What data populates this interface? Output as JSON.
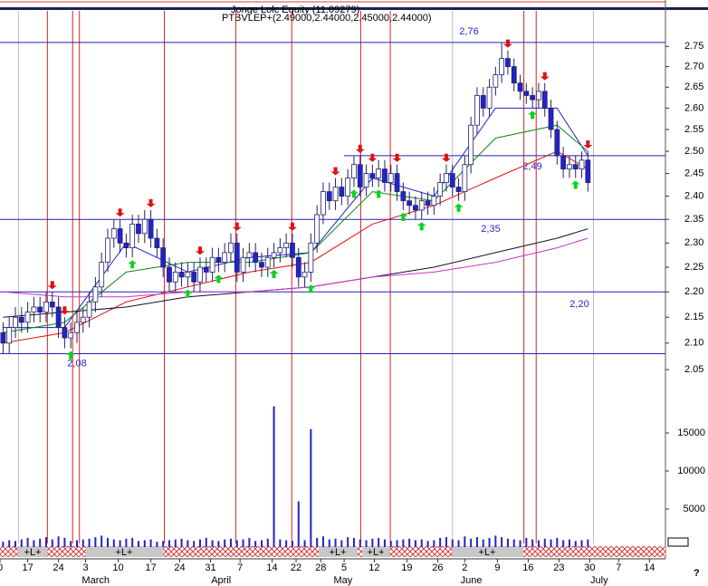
{
  "chart_data": {
    "type": "candlestick",
    "title": "Jonge Lolc Equity (11.09279)",
    "subtitle": "PTBVLEP+(2.49000,2.44000,2.45000,2.44000)",
    "log_scale": true,
    "xlim": [
      -0.5,
      107.6
    ],
    "ylim": [
      2.03,
      2.845
    ],
    "yticks": [
      {
        "value": 2.05,
        "label": "2.05"
      },
      {
        "value": 2.1,
        "label": "2.10"
      },
      2.15,
      {
        "value": 2.2,
        "label": "2.20"
      },
      2.25,
      {
        "value": 2.3,
        "label": "2.30"
      },
      2.35,
      {
        "value": 2.4,
        "label": "2.40"
      },
      2.45,
      {
        "value": 2.5,
        "label": "2.50"
      },
      2.55,
      {
        "value": 2.6,
        "label": "2.60"
      },
      2.65,
      {
        "value": 2.7,
        "label": "2.70"
      },
      2.75
    ],
    "xticks": [
      {
        "value": -0.5,
        "label": "0"
      },
      {
        "value": 4,
        "label": "17"
      },
      {
        "value": 9,
        "label": "24"
      },
      {
        "value": 13.4,
        "label": "3"
      },
      {
        "value": 18.7,
        "label": "10"
      },
      {
        "value": 24,
        "label": "17"
      },
      {
        "value": 28.7,
        "label": "24"
      },
      {
        "value": 33.7,
        "label": "31"
      },
      {
        "value": 38.5,
        "label": "7"
      },
      {
        "value": 43.7,
        "label": "14"
      },
      {
        "value": 47.6,
        "label": "22"
      },
      {
        "value": 51.6,
        "label": "28"
      },
      {
        "value": 55.4,
        "label": "5"
      },
      {
        "value": 60.3,
        "label": "12"
      },
      {
        "value": 65.6,
        "label": "19"
      },
      {
        "value": 70.6,
        "label": "26"
      },
      {
        "value": 75,
        "label": "2"
      },
      {
        "value": 80.3,
        "label": "9"
      },
      {
        "value": 85.3,
        "label": "16"
      },
      {
        "value": 90.3,
        "label": "23"
      },
      {
        "value": 95.3,
        "label": "30"
      },
      {
        "value": 100,
        "label": "7"
      },
      {
        "value": 105,
        "label": "14"
      }
    ],
    "months": [
      {
        "value": 12.8,
        "label": "March"
      },
      {
        "value": 33.8,
        "label": "April"
      },
      {
        "value": 53.7,
        "label": "May"
      },
      {
        "value": 74.3,
        "label": "June"
      },
      {
        "value": 95.4,
        "label": "July"
      }
    ],
    "up_color": "#ffffff",
    "down_color": "#2323c8",
    "open": [
      2.12,
      2.1,
      2.13,
      2.15,
      2.14,
      2.16,
      2.17,
      2.16,
      2.18,
      2.17,
      2.13,
      2.11,
      2.12,
      2.14,
      2.15,
      2.18,
      2.21,
      2.26,
      2.31,
      2.33,
      2.3,
      2.29,
      2.34,
      2.32,
      2.35,
      2.31,
      2.29,
      2.25,
      2.22,
      2.24,
      2.23,
      2.24,
      2.22,
      2.25,
      2.24,
      2.27,
      2.26,
      2.28,
      2.3,
      2.24,
      2.27,
      2.28,
      2.26,
      2.25,
      2.27,
      2.28,
      2.29,
      2.3,
      2.27,
      2.23,
      2.24,
      2.3,
      2.36,
      2.41,
      2.39,
      2.42,
      2.4,
      2.44,
      2.47,
      2.42,
      2.45,
      2.44,
      2.46,
      2.43,
      2.45,
      2.41,
      2.39,
      2.38,
      2.37,
      2.39,
      2.38,
      2.4,
      2.43,
      2.45,
      2.42,
      2.41,
      2.47,
      2.56,
      2.63,
      2.6,
      2.65,
      2.68,
      2.72,
      2.7,
      2.66,
      2.64,
      2.63,
      2.62,
      2.64,
      2.6,
      2.55,
      2.49,
      2.46,
      2.47,
      2.46,
      2.48
    ],
    "high": [
      2.14,
      2.15,
      2.17,
      2.17,
      2.18,
      2.19,
      2.19,
      2.2,
      2.2,
      2.19,
      2.15,
      2.14,
      2.16,
      2.17,
      2.2,
      2.23,
      2.28,
      2.33,
      2.35,
      2.35,
      2.32,
      2.36,
      2.36,
      2.37,
      2.37,
      2.33,
      2.31,
      2.27,
      2.26,
      2.26,
      2.26,
      2.26,
      2.27,
      2.27,
      2.29,
      2.29,
      2.3,
      2.32,
      2.32,
      2.29,
      2.3,
      2.3,
      2.28,
      2.29,
      2.3,
      2.31,
      2.32,
      2.32,
      2.29,
      2.26,
      2.32,
      2.38,
      2.43,
      2.43,
      2.44,
      2.44,
      2.46,
      2.49,
      2.49,
      2.47,
      2.47,
      2.48,
      2.48,
      2.47,
      2.47,
      2.43,
      2.41,
      2.4,
      2.41,
      2.41,
      2.42,
      2.45,
      2.47,
      2.47,
      2.44,
      2.49,
      2.58,
      2.65,
      2.65,
      2.67,
      2.7,
      2.76,
      2.74,
      2.72,
      2.68,
      2.66,
      2.65,
      2.66,
      2.66,
      2.62,
      2.57,
      2.51,
      2.49,
      2.49,
      2.5,
      2.5
    ],
    "low": [
      2.08,
      2.08,
      2.11,
      2.12,
      2.12,
      2.14,
      2.14,
      2.14,
      2.15,
      2.11,
      2.09,
      2.09,
      2.1,
      2.12,
      2.13,
      2.16,
      2.19,
      2.24,
      2.29,
      2.28,
      2.27,
      2.27,
      2.3,
      2.3,
      2.29,
      2.27,
      2.23,
      2.2,
      2.2,
      2.21,
      2.21,
      2.2,
      2.2,
      2.22,
      2.22,
      2.24,
      2.24,
      2.26,
      2.22,
      2.22,
      2.25,
      2.24,
      2.23,
      2.23,
      2.25,
      2.26,
      2.27,
      2.25,
      2.21,
      2.21,
      2.22,
      2.28,
      2.34,
      2.37,
      2.37,
      2.38,
      2.38,
      2.42,
      2.4,
      2.4,
      2.42,
      2.42,
      2.41,
      2.41,
      2.39,
      2.37,
      2.36,
      2.35,
      2.35,
      2.36,
      2.36,
      2.38,
      2.41,
      2.4,
      2.39,
      2.39,
      2.45,
      2.54,
      2.58,
      2.58,
      2.63,
      2.66,
      2.68,
      2.64,
      2.62,
      2.61,
      2.6,
      2.6,
      2.58,
      2.53,
      2.47,
      2.44,
      2.44,
      2.44,
      2.44,
      2.41
    ],
    "close": [
      2.1,
      2.13,
      2.15,
      2.14,
      2.16,
      2.17,
      2.16,
      2.18,
      2.17,
      2.13,
      2.11,
      2.12,
      2.14,
      2.15,
      2.18,
      2.21,
      2.26,
      2.31,
      2.33,
      2.3,
      2.29,
      2.34,
      2.32,
      2.35,
      2.31,
      2.29,
      2.25,
      2.22,
      2.24,
      2.23,
      2.24,
      2.22,
      2.25,
      2.24,
      2.27,
      2.26,
      2.28,
      2.3,
      2.24,
      2.27,
      2.28,
      2.26,
      2.25,
      2.27,
      2.28,
      2.29,
      2.3,
      2.27,
      2.23,
      2.24,
      2.3,
      2.36,
      2.41,
      2.39,
      2.42,
      2.4,
      2.44,
      2.47,
      2.42,
      2.45,
      2.44,
      2.46,
      2.43,
      2.45,
      2.41,
      2.39,
      2.38,
      2.37,
      2.39,
      2.38,
      2.4,
      2.43,
      2.45,
      2.42,
      2.41,
      2.47,
      2.56,
      2.63,
      2.6,
      2.65,
      2.68,
      2.72,
      2.7,
      2.66,
      2.64,
      2.63,
      2.62,
      2.64,
      2.6,
      2.55,
      2.49,
      2.46,
      2.47,
      2.46,
      2.48,
      2.43
    ],
    "ma_x": [
      0,
      10,
      20,
      30,
      40,
      50,
      60,
      70,
      80,
      90,
      95
    ],
    "moving_averages": [
      {
        "color": "#1f1fd0",
        "values": [
          2.13,
          2.13,
          2.3,
          2.24,
          2.27,
          2.28,
          2.44,
          2.4,
          2.6,
          2.6,
          2.49
        ]
      },
      {
        "color": "#118811",
        "values": [
          2.12,
          2.14,
          2.24,
          2.26,
          2.26,
          2.28,
          2.41,
          2.39,
          2.53,
          2.56,
          2.5
        ]
      },
      {
        "color": "#dd1111",
        "values": [
          2.1,
          2.12,
          2.18,
          2.21,
          2.24,
          2.26,
          2.34,
          2.38,
          2.44,
          2.5,
          2.46
        ]
      },
      {
        "color": "#111133",
        "values": [
          2.15,
          2.16,
          2.17,
          2.19,
          2.2,
          2.21,
          2.23,
          2.25,
          2.28,
          2.31,
          2.33
        ]
      },
      {
        "color": "#cc33cc",
        "values": [
          2.2,
          2.19,
          2.19,
          2.2,
          2.2,
          2.21,
          2.23,
          2.24,
          2.26,
          2.29,
          2.31
        ]
      }
    ],
    "levels": [
      2.76,
      2.49,
      2.35,
      2.2,
      2.08
    ],
    "level_labels": [
      "2,76",
      "2,49",
      "2,35",
      "2,20",
      "2,08"
    ],
    "level_color": "#2323b0",
    "sell_signals": [
      8,
      10,
      19,
      24,
      32,
      38,
      47,
      54,
      58,
      60,
      64,
      72,
      82,
      88,
      95
    ],
    "buy_signals": [
      11,
      21,
      30,
      35,
      44,
      50,
      57,
      61,
      65,
      68,
      74,
      86,
      93
    ],
    "cycle_lines": [
      7.2,
      11.3,
      12.4,
      26.2,
      37.8,
      46.9,
      58.1,
      62.9,
      84.6,
      86.6
    ],
    "cycle_color": "#dd2222",
    "gray_lines": [
      2.5,
      73,
      95.9
    ],
    "volume": [
      700,
      900,
      800,
      1000,
      1200,
      900,
      1100,
      1300,
      1000,
      1400,
      1200,
      800,
      900,
      1000,
      1100,
      1300,
      1500,
      1200,
      1000,
      900,
      1100,
      1200,
      800,
      900,
      1000,
      700,
      800,
      900,
      1000,
      1100,
      900,
      800,
      1000,
      1200,
      900,
      800,
      1000,
      1100,
      900,
      1000,
      1200,
      800,
      900,
      1100,
      18500,
      1000,
      900,
      800,
      6000,
      900,
      15500,
      1200,
      1400,
      1000,
      1100,
      900,
      1300,
      1200,
      1000,
      900,
      1100,
      1200,
      1000,
      800,
      900,
      1000,
      1100,
      900,
      1000,
      800,
      900,
      1200,
      1300,
      1000,
      900,
      1400,
      1100,
      1300,
      1000,
      1200,
      1500,
      1300,
      1100,
      1000,
      900,
      1200,
      1000,
      900,
      1100,
      1000,
      1200,
      900,
      1000,
      800,
      900,
      1000
    ],
    "volume_color": "#2323c8",
    "volume_lim": [
      0,
      20000
    ],
    "volume_ticks": [
      5000,
      10000,
      15000
    ],
    "strip_labels": [
      "+L+",
      "+L+",
      "+L+",
      "+L+",
      "+L+"
    ],
    "footer_mark": "?"
  }
}
